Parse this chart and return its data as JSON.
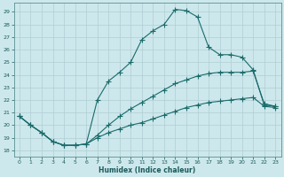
{
  "xlabel": "Humidex (Indice chaleur)",
  "bg_color": "#cde8ec",
  "grid_color": "#b0cdd4",
  "line_color": "#1a6b6b",
  "xlim": [
    -0.5,
    23.5
  ],
  "ylim": [
    17.5,
    29.7
  ],
  "xticks": [
    0,
    1,
    2,
    3,
    4,
    5,
    6,
    7,
    8,
    9,
    10,
    11,
    12,
    13,
    14,
    15,
    16,
    17,
    18,
    19,
    20,
    21,
    22,
    23
  ],
  "yticks": [
    18,
    19,
    20,
    21,
    22,
    23,
    24,
    25,
    26,
    27,
    28,
    29
  ],
  "curve1_x": [
    0,
    1,
    2,
    3,
    4,
    5,
    6,
    7,
    8,
    9,
    10,
    11,
    12,
    13,
    14,
    15,
    16,
    17,
    18,
    19,
    20,
    21,
    22,
    23
  ],
  "curve1_y": [
    20.7,
    20.0,
    19.4,
    18.7,
    18.4,
    18.4,
    18.5,
    22.0,
    23.5,
    24.2,
    25.0,
    26.8,
    27.5,
    28.0,
    29.2,
    29.1,
    28.6,
    26.2,
    25.6,
    25.6,
    25.4,
    24.4,
    21.6,
    21.5
  ],
  "curve2_x": [
    0,
    1,
    2,
    3,
    4,
    5,
    6,
    7,
    8,
    9,
    10,
    11,
    12,
    13,
    14,
    15,
    16,
    17,
    18,
    19,
    20,
    21,
    22,
    23
  ],
  "curve2_y": [
    20.7,
    20.0,
    19.4,
    18.7,
    18.4,
    18.4,
    18.5,
    19.2,
    20.0,
    20.7,
    21.3,
    21.8,
    22.3,
    22.8,
    23.3,
    23.6,
    23.9,
    24.1,
    24.2,
    24.2,
    24.2,
    24.3,
    21.7,
    21.5
  ],
  "curve3_x": [
    0,
    1,
    2,
    3,
    4,
    5,
    6,
    7,
    8,
    9,
    10,
    11,
    12,
    13,
    14,
    15,
    16,
    17,
    18,
    19,
    20,
    21,
    22,
    23
  ],
  "curve3_y": [
    20.7,
    20.0,
    19.4,
    18.7,
    18.4,
    18.4,
    18.5,
    19.0,
    19.4,
    19.7,
    20.0,
    20.2,
    20.5,
    20.8,
    21.1,
    21.4,
    21.6,
    21.8,
    21.9,
    22.0,
    22.1,
    22.2,
    21.5,
    21.4
  ]
}
